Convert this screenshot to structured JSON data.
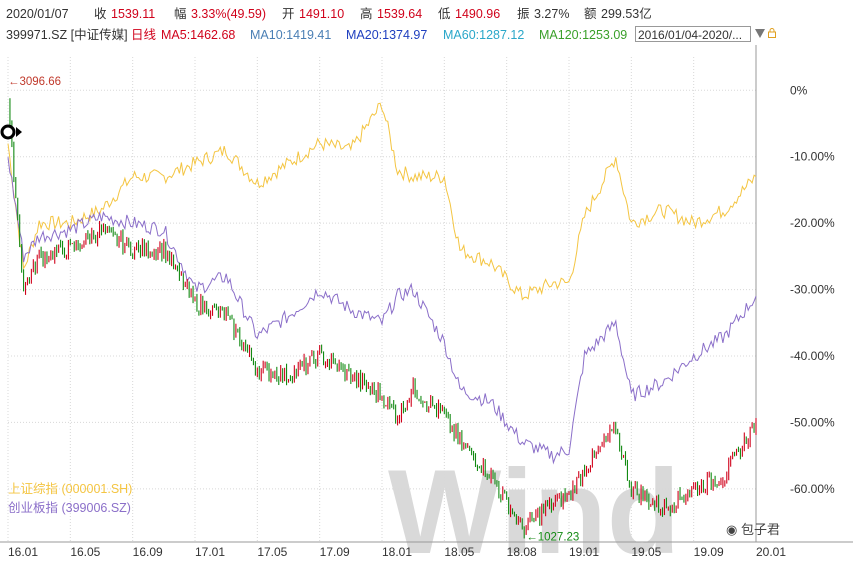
{
  "header": {
    "date": "2020/01/07",
    "close_label": "收",
    "close_value": "1539.11",
    "change_label": "幅",
    "change_value": "3.33%(49.59)",
    "open_label": "开",
    "open_value": "1491.10",
    "high_label": "高",
    "high_value": "1539.64",
    "low_label": "低",
    "low_value": "1490.96",
    "amp_label": "振",
    "amp_value": "3.27%",
    "amount_label": "额",
    "amount_value": "299.53亿"
  },
  "ma_bar": {
    "code": "399971.SZ [中证传媒]",
    "period": "日线",
    "ma5": "MA5:1462.68",
    "ma10": "MA10:1419.41",
    "ma20": "MA20:1374.97",
    "ma60": "MA60:1287.12",
    "ma120": "MA120:1253.09",
    "date_range": "2016/01/04-2020/..."
  },
  "colors": {
    "up": "#d0021b",
    "down": "#138a13",
    "ma10": "#4a7fb5",
    "ma20": "#1f3fbf",
    "ma60": "#2aa7c9",
    "ma120": "#3aa02a",
    "sse": "#f4c542",
    "chinext": "#8b6fc9",
    "grid": "#d8d8d8",
    "watermark": "#d9d9d9",
    "label": "#c0392b"
  },
  "watermark": {
    "brand": "Wind",
    "account": "包子君"
  },
  "chart_data": {
    "type": "line",
    "ylabel": "",
    "yaxis": "percent change from 2016/01/04",
    "ylim": [
      -68,
      2
    ],
    "yticks": [
      "0%",
      "-10.00%",
      "-20.00%",
      "-30.00%",
      "-40.00%",
      "-50.00%",
      "-60.00%"
    ],
    "ytick_values": [
      0,
      -10,
      -20,
      -30,
      -40,
      -50,
      -60
    ],
    "xticks": [
      "16.01",
      "16.05",
      "16.09",
      "17.01",
      "17.05",
      "17.09",
      "18.01",
      "18.05",
      "18.08",
      "19.01",
      "19.05",
      "19.09",
      "20.01"
    ],
    "grid": true,
    "legend": "bottom-left",
    "annotations": {
      "high": "3096.66",
      "low": "1027.23"
    },
    "series": [
      {
        "name": "上证综指 (000001.SH)",
        "x": [
          "16.01",
          "16.02",
          "16.03",
          "16.05",
          "16.07",
          "16.09",
          "16.11",
          "17.01",
          "17.03",
          "17.05",
          "17.07",
          "17.09",
          "17.11",
          "18.01",
          "18.02",
          "18.03",
          "18.05",
          "18.06",
          "18.08",
          "18.10",
          "18.12",
          "19.01",
          "19.02",
          "19.04",
          "19.05",
          "19.07",
          "19.09",
          "19.11",
          "20.01"
        ],
        "y": [
          -8,
          -27,
          -20,
          -20,
          -18,
          -13,
          -13,
          -11,
          -9,
          -14,
          -11,
          -8,
          -9,
          -2,
          -12,
          -13,
          -13,
          -24,
          -26,
          -31,
          -29,
          -29,
          -19,
          -10,
          -20,
          -18,
          -20,
          -18,
          -13
        ]
      },
      {
        "name": "创业板指 (399006.SZ)",
        "x": [
          "16.01",
          "16.02",
          "16.03",
          "16.05",
          "16.07",
          "16.09",
          "16.11",
          "17.01",
          "17.03",
          "17.05",
          "17.07",
          "17.09",
          "17.11",
          "18.01",
          "18.02",
          "18.03",
          "18.05",
          "18.06",
          "18.08",
          "18.10",
          "18.12",
          "19.01",
          "19.02",
          "19.04",
          "19.05",
          "19.07",
          "19.09",
          "19.11",
          "20.01"
        ],
        "y": [
          -10,
          -25,
          -22,
          -21,
          -19,
          -20,
          -21,
          -30,
          -28,
          -37,
          -34,
          -30,
          -33,
          -35,
          -31,
          -30,
          -38,
          -45,
          -47,
          -53,
          -55,
          -54,
          -40,
          -35,
          -46,
          -44,
          -40,
          -37,
          -31
        ]
      },
      {
        "name": "399971.SZ 中证传媒",
        "x": [
          "16.01",
          "16.02",
          "16.03",
          "16.05",
          "16.07",
          "16.09",
          "16.11",
          "17.01",
          "17.03",
          "17.05",
          "17.07",
          "17.09",
          "17.11",
          "18.01",
          "18.02",
          "18.03",
          "18.05",
          "18.06",
          "18.08",
          "18.10",
          "18.12",
          "19.01",
          "19.02",
          "19.04",
          "19.05",
          "19.07",
          "19.09",
          "19.11",
          "20.01"
        ],
        "y": [
          -2,
          -30,
          -25,
          -24,
          -21,
          -24,
          -24,
          -32,
          -34,
          -42,
          -43,
          -40,
          -43,
          -46,
          -49,
          -45,
          -49,
          -53,
          -58,
          -66,
          -62,
          -61,
          -57,
          -51,
          -60,
          -63,
          -60,
          -58,
          -50
        ]
      }
    ]
  }
}
